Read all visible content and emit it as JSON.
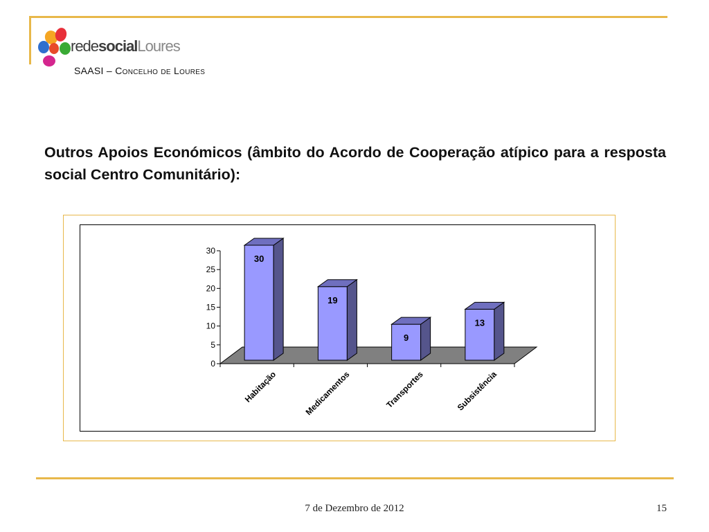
{
  "header": {
    "logo": {
      "rede": "rede",
      "social": "social",
      "loures": "Loures"
    },
    "subtitle": "SAASI – Concelho de Loures"
  },
  "slide": {
    "heading": "Outros Apoios Económicos (âmbito do Acordo de Cooperação atípico para a resposta social Centro Comunitário):"
  },
  "chart_data": {
    "type": "bar",
    "categories": [
      "Habitação",
      "Medicamentos",
      "Transportes",
      "Subsistência"
    ],
    "values": [
      30,
      19,
      9,
      13
    ],
    "ylim": [
      0,
      30
    ],
    "yticks": [
      0,
      5,
      10,
      15,
      20,
      25,
      30
    ],
    "title": "",
    "xlabel": "",
    "ylabel": "",
    "grid": false,
    "legend": "none",
    "three_d": true,
    "bar_color": "#9999ff",
    "bar_side_color": "#55558c",
    "bar_top_color": "#6f6fbf",
    "floor_color": "#808080"
  },
  "footer": {
    "date": "7 de Dezembro de 2012",
    "page": "15"
  },
  "colors": {
    "accent": "#e8b84a"
  }
}
